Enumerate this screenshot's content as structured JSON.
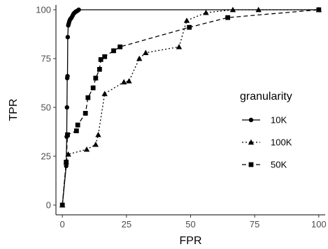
{
  "chart_data": {
    "type": "line",
    "xlabel": "FPR",
    "ylabel": "TPR",
    "xlim": [
      -2.5,
      102.5
    ],
    "ylim": [
      -5,
      102.5
    ],
    "xticks": [
      0,
      25,
      50,
      75,
      100
    ],
    "yticks": [
      0,
      25,
      50,
      75,
      100
    ],
    "grid": false,
    "legend": {
      "title": "granularity",
      "position": "right"
    },
    "series": [
      {
        "name": "10K",
        "line": "solid",
        "marker": "circle",
        "x": [
          0,
          1.5,
          1.7,
          1.8,
          1.9,
          2.0,
          2.1,
          2.3,
          2.5,
          2.7,
          3.0,
          3.3,
          3.6,
          4.0,
          4.4,
          4.8,
          5.2,
          5.6,
          6.0,
          6.4,
          100
        ],
        "y": [
          0,
          20,
          35,
          50,
          65,
          66,
          86,
          92,
          93,
          94,
          95,
          95.5,
          96,
          97,
          98,
          98.5,
          99,
          99.3,
          99.6,
          100,
          100
        ]
      },
      {
        "name": "100K",
        "line": "dotted",
        "marker": "triangle",
        "x": [
          0,
          1.5,
          2.3,
          9.5,
          13.0,
          14.0,
          16.5,
          24.0,
          26.0,
          30.0,
          32.5,
          45.5,
          48.5,
          56.0,
          66.5,
          76.5,
          100
        ],
        "y": [
          0,
          22,
          26,
          28.5,
          31,
          36,
          57,
          63,
          63.5,
          75,
          78,
          81,
          94.5,
          98.5,
          100,
          100,
          100
        ]
      },
      {
        "name": "50K",
        "line": "dashed",
        "marker": "square",
        "x": [
          0,
          1.5,
          2.0,
          5.5,
          6.0,
          9.0,
          10.0,
          12.0,
          13.0,
          14.5,
          15.0,
          16.5,
          20.0,
          22.5,
          49.5,
          64.5,
          100
        ],
        "y": [
          0,
          22,
          36,
          38,
          41,
          47,
          55,
          60,
          65,
          69.5,
          74.5,
          76,
          79,
          81,
          91,
          96,
          100
        ]
      }
    ]
  }
}
